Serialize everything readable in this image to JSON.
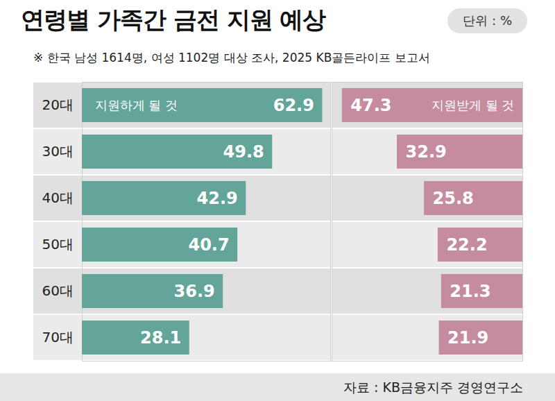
{
  "title": "연령별 가족간 금전 지원 예상",
  "unit": "단위 : %",
  "note": "※ 한국 남성 1614명, 여성 1102명 대상 조사, 2025 KB골든라이프 보고서",
  "source": "자료 : KB금융지주 경영연구소",
  "chart_data": [
    {
      "type": "bar",
      "orientation": "horizontal",
      "categories": [
        "20대",
        "30대",
        "40대",
        "50대",
        "60대",
        "70대"
      ],
      "series": [
        {
          "name": "지원하게 될 것",
          "color": "#63a598",
          "values": [
            62.9,
            49.8,
            42.9,
            40.7,
            36.9,
            28.1
          ]
        }
      ],
      "xlim": [
        0,
        65
      ],
      "xticks": [],
      "data_labels": true,
      "tick_labels": "y",
      "grid": false
    },
    {
      "type": "bar",
      "orientation": "horizontal",
      "categories": [
        "20대",
        "30대",
        "40대",
        "50대",
        "60대",
        "70대"
      ],
      "series": [
        {
          "name": "지원받게 될 것",
          "color": "#c58ca0",
          "values": [
            47.3,
            32.9,
            25.8,
            22.2,
            21.3,
            21.9
          ]
        }
      ],
      "xlim": [
        0,
        50
      ],
      "xticks": [],
      "data_labels": true,
      "tick_labels": false,
      "grid": false
    }
  ]
}
